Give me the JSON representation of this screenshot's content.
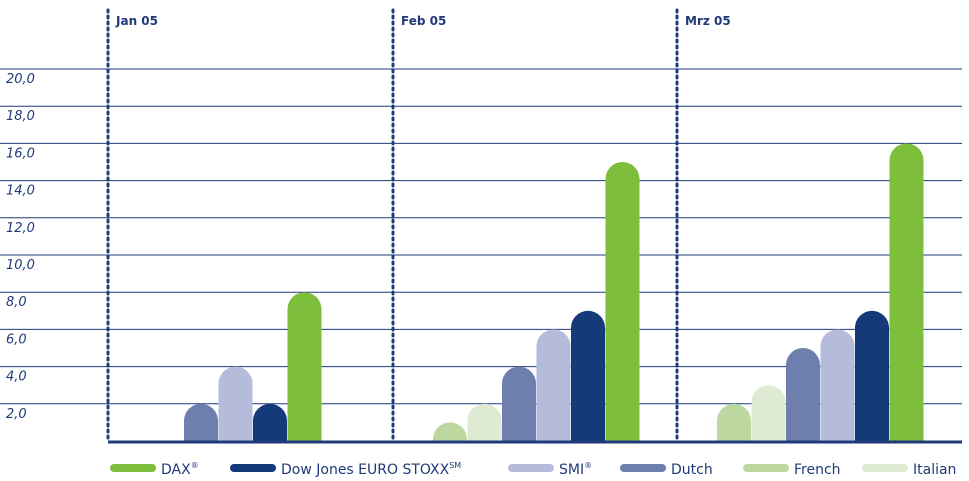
{
  "chart_data": {
    "type": "bar",
    "categories": [
      "Jan 05",
      "Feb 05",
      "Mrz 05"
    ],
    "y_ticks": [
      "2,0",
      "4,0",
      "6,0",
      "8,0",
      "10,0",
      "12,0",
      "14,0",
      "16,0",
      "18,0",
      "20,0"
    ],
    "ylim": [
      0,
      20
    ],
    "grid": true,
    "legend_position": "bottom",
    "series": [
      {
        "name": "DAX",
        "name_sup": "®",
        "color": "#7dbe3c",
        "values": [
          8.0,
          15.0,
          16.0
        ]
      },
      {
        "name": "Dow Jones EURO STOXX",
        "name_sup": "SM",
        "color": "#143a7a",
        "values": [
          2.0,
          7.0,
          7.0
        ]
      },
      {
        "name": "SMI",
        "name_sup": "®",
        "color": "#b4bbdb",
        "values": [
          4.0,
          6.0,
          6.0
        ]
      },
      {
        "name": "Dutch",
        "name_sup": "",
        "color": "#6e7fae",
        "values": [
          2.0,
          4.0,
          5.0
        ]
      },
      {
        "name": "French",
        "name_sup": "",
        "color": "#bcd7a0",
        "values": [
          0.0,
          1.0,
          2.0
        ]
      },
      {
        "name": "Italian",
        "name_sup": "",
        "color": "#deebd2",
        "values": [
          0.0,
          2.0,
          3.0
        ]
      }
    ]
  }
}
